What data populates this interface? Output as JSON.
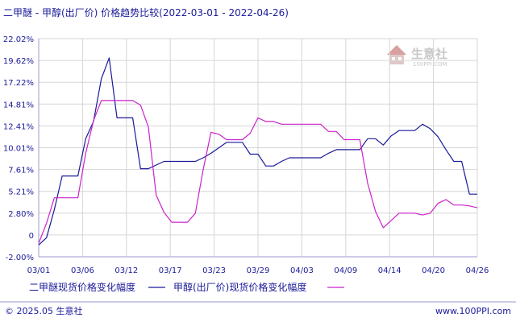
{
  "chart_data": {
    "type": "line",
    "title": "二甲醚 - 甲醇(出厂价) 价格趋势比较(2022-03-01 - 2022-04-26)",
    "y_tick_labels": [
      "22.02%",
      "19.62%",
      "17.22%",
      "14.81%",
      "12.41%",
      "10.01%",
      "7.61%",
      "5.21%",
      "2.80%",
      "0",
      "-2.00%"
    ],
    "x_tick_labels": [
      "03/01",
      "03/06",
      "03/12",
      "03/17",
      "03/23",
      "03/29",
      "04/03",
      "04/09",
      "04/14",
      "04/20",
      "04/26"
    ],
    "ylim": [
      -2.0,
      22.02
    ],
    "grid": true,
    "legend_position": "bottom",
    "series": [
      {
        "name": "二甲醚现货价格变化幅度",
        "color": "#1a1a99",
        "x": [
          0,
          1,
          2,
          3,
          4,
          5,
          6,
          7,
          8,
          9,
          10,
          11,
          12,
          13,
          14,
          15,
          16,
          17,
          18,
          19,
          20,
          21,
          22,
          23,
          24,
          25,
          26,
          27,
          28,
          29,
          30,
          31,
          32,
          33,
          34,
          35,
          36,
          37,
          38,
          39,
          40,
          41,
          42,
          43,
          44,
          45,
          46,
          47,
          48,
          49,
          50,
          51,
          52,
          53,
          54,
          55,
          56
        ],
        "values": [
          -0.7,
          0.1,
          3.2,
          6.9,
          6.9,
          6.9,
          11.0,
          12.9,
          17.6,
          19.9,
          13.3,
          13.3,
          13.3,
          7.7,
          7.7,
          8.1,
          8.5,
          8.5,
          8.5,
          8.5,
          8.5,
          8.9,
          9.4,
          10.0,
          10.6,
          10.6,
          10.6,
          9.3,
          9.3,
          8.0,
          8.0,
          8.5,
          8.9,
          8.9,
          8.9,
          8.9,
          8.9,
          9.4,
          9.8,
          9.8,
          9.8,
          9.8,
          11.0,
          11.0,
          10.3,
          11.3,
          11.9,
          11.9,
          11.9,
          12.6,
          12.1,
          11.2,
          9.8,
          8.5,
          8.5,
          4.9,
          4.9
        ]
      },
      {
        "name": "甲醇(出厂价)现货价格变化幅度",
        "color": "#cc22cc",
        "x": [
          0,
          1,
          2,
          3,
          4,
          5,
          6,
          7,
          8,
          9,
          10,
          11,
          12,
          13,
          14,
          15,
          16,
          17,
          18,
          19,
          20,
          21,
          22,
          23,
          24,
          25,
          26,
          27,
          28,
          29,
          30,
          31,
          32,
          33,
          34,
          35,
          36,
          37,
          38,
          39,
          40,
          41,
          42,
          43,
          44,
          45,
          46,
          47,
          48,
          49,
          50,
          51,
          52,
          53,
          54,
          55,
          56
        ],
        "values": [
          -0.5,
          1.7,
          4.5,
          4.5,
          4.5,
          4.5,
          9.4,
          13.0,
          15.2,
          15.2,
          15.2,
          15.2,
          15.2,
          14.7,
          12.3,
          4.8,
          2.9,
          1.8,
          1.8,
          1.8,
          2.8,
          7.6,
          11.7,
          11.5,
          10.9,
          10.9,
          10.9,
          11.6,
          13.3,
          12.9,
          12.9,
          12.6,
          12.6,
          12.6,
          12.6,
          12.6,
          12.6,
          11.8,
          11.8,
          10.9,
          10.9,
          10.9,
          6.1,
          3.0,
          1.2,
          2.0,
          2.8,
          2.8,
          2.8,
          2.6,
          2.8,
          3.9,
          4.3,
          3.7,
          3.7,
          3.6,
          3.4
        ]
      }
    ]
  },
  "legend": {
    "items": [
      {
        "label": "二甲醚现货价格变化幅度",
        "color": "#1a1a99"
      },
      {
        "label": "甲醇(出厂价)现货价格变化幅度",
        "color": "#cc22cc"
      }
    ]
  },
  "watermark": {
    "brand": "生意社",
    "site": "100PPI.COM"
  },
  "footer": {
    "copyright": "© 2025.05 生意社",
    "url": "www.100PPI.com"
  }
}
